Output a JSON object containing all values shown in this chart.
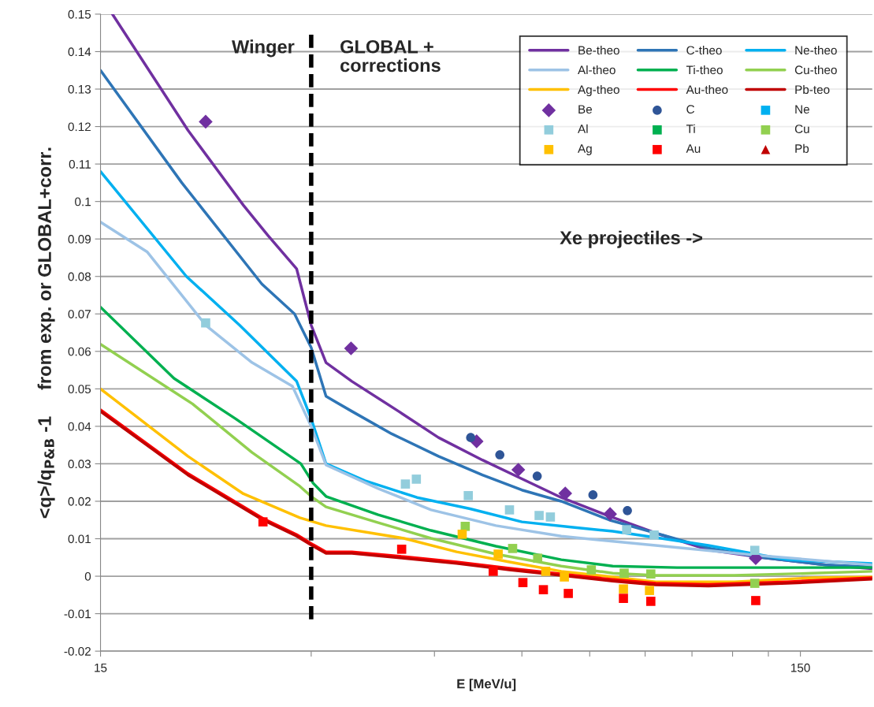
{
  "chart_data": {
    "type": "line",
    "xlabel": "E [MeV/u]",
    "ylabel": "<q>/q$_{P&B}$ -1     from exp. or GLOBAL+corr.",
    "annotations": [
      "Winger",
      "GLOBAL +\ncorrections",
      "Xe projectiles ->"
    ],
    "log": "x",
    "xlim": [
      15,
      190
    ],
    "xticks": [
      15,
      {
        "value": 30,
        "label": null
      },
      {
        "value": 45,
        "label": null
      },
      {
        "value": 60,
        "label": null
      },
      {
        "value": 75,
        "label": null
      },
      {
        "value": 90,
        "label": null
      },
      {
        "value": 105,
        "label": null
      },
      {
        "value": 120,
        "label": null
      },
      {
        "value": 135,
        "label": null
      },
      150
    ],
    "ylim": [
      -0.02,
      0.15
    ],
    "yticks": [
      -0.02,
      -0.01,
      0,
      0.01,
      0.02,
      0.03,
      0.04,
      0.05,
      0.06,
      0.07,
      0.08,
      0.09,
      0.1,
      0.11,
      0.12,
      0.13,
      0.14,
      0.15
    ],
    "grid": "y",
    "legend": "top right",
    "ref_lines": [
      {
        "axis": "x",
        "value": 30,
        "color": "#000000",
        "line_style": "dashed"
      }
    ],
    "series": [
      {
        "name": "Be-theo",
        "color": "#7030a0",
        "x": [
          15.6,
          20,
          24,
          26,
          28.6,
          30,
          31.5,
          34.3,
          40,
          45.6,
          52.7,
          60,
          68.3,
          80,
          95,
          111,
          132,
          163,
          190
        ],
        "values": [
          0.15,
          0.119,
          0.099,
          0.091,
          0.082,
          0.067,
          0.057,
          0.052,
          0.044,
          0.037,
          0.031,
          0.026,
          0.021,
          0.016,
          0.011,
          0.007,
          0.005,
          0.003,
          0.002
        ]
      },
      {
        "name": "C-theo",
        "color": "#2e75b6",
        "x": [
          15,
          19.6,
          25.5,
          28.4,
          30,
          31.5,
          34.3,
          39.1,
          45.6,
          52.7,
          60,
          68.3,
          80,
          111,
          132,
          163,
          190
        ],
        "values": [
          0.135,
          0.105,
          0.078,
          0.07,
          0.061,
          0.048,
          0.044,
          0.038,
          0.032,
          0.027,
          0.023,
          0.02,
          0.015,
          0.0075,
          0.005,
          0.003,
          0.0025
        ]
      },
      {
        "name": "Ne-theo",
        "color": "#00b0f0",
        "x": [
          15,
          19.9,
          23.7,
          28.6,
          30,
          31.5,
          35.8,
          42.5,
          50.6,
          60,
          71.4,
          80.9,
          93.2,
          110.8,
          143.6,
          190
        ],
        "values": [
          0.108,
          0.08,
          0.067,
          0.052,
          0.042,
          0.03,
          0.0255,
          0.021,
          0.018,
          0.0145,
          0.013,
          0.012,
          0.0103,
          0.0082,
          0.0044,
          0.0034
        ]
      },
      {
        "name": "Al-theo",
        "color": "#9dc3e6",
        "x": [
          15,
          17.5,
          21.2,
          24.7,
          28.2,
          30,
          31.5,
          37.4,
          44.5,
          55.1,
          68.3,
          80.9,
          93.2,
          131.8,
          190
        ],
        "values": [
          0.0945,
          0.0865,
          0.067,
          0.057,
          0.0507,
          0.04,
          0.0297,
          0.0234,
          0.0177,
          0.0135,
          0.0107,
          0.0093,
          0.0082,
          0.0055,
          0.003
        ]
      },
      {
        "name": "Ti-theo",
        "color": "#00b050",
        "x": [
          15,
          19.1,
          23.4,
          27,
          29,
          30.2,
          31.5,
          37.4,
          44.5,
          55.1,
          68.3,
          80.9,
          100,
          190
        ],
        "values": [
          0.0718,
          0.0528,
          0.042,
          0.034,
          0.03,
          0.0248,
          0.0213,
          0.0164,
          0.0122,
          0.008,
          0.0044,
          0.0027,
          0.0023,
          0.0023
        ]
      },
      {
        "name": "Cu-theo",
        "color": "#92d050",
        "x": [
          15,
          20.3,
          24.7,
          28.9,
          30,
          31.5,
          37.4,
          44.5,
          55.1,
          68.3,
          80.9,
          93.2,
          120.7,
          156,
          190
        ],
        "values": [
          0.0619,
          0.046,
          0.033,
          0.024,
          0.0213,
          0.0185,
          0.0143,
          0.0101,
          0.0059,
          0.0027,
          0.0008,
          0.0002,
          0.0002,
          0.0008,
          0.0013
        ]
      },
      {
        "name": "Ag-theo",
        "color": "#ffc000",
        "x": [
          15,
          20,
          24,
          28.9,
          31.5,
          40.7,
          48.4,
          57.6,
          68.3,
          80.9,
          93.2,
          120.7,
          156,
          190
        ],
        "values": [
          0.05,
          0.032,
          0.022,
          0.0156,
          0.0135,
          0.0101,
          0.0065,
          0.0038,
          0.0013,
          -0.0002,
          -0.0015,
          -0.0015,
          -0.0004,
          -0.0002
        ]
      },
      {
        "name": "Au-theo",
        "color": "#ff0000",
        "x": [
          15,
          20,
          25.6,
          28.6,
          30.2,
          31.5,
          34.3,
          40.7,
          48.4,
          57.6,
          68.3,
          80.9,
          93.2,
          110.8,
          143.6,
          190
        ],
        "values": [
          0.0444,
          0.0274,
          0.0154,
          0.0111,
          0.0084,
          0.0065,
          0.0065,
          0.0052,
          0.0038,
          0.0021,
          0.0006,
          -0.0009,
          -0.0019,
          -0.0022,
          -0.0015,
          -0.0004
        ]
      },
      {
        "name": "Pb-teo",
        "color": "#c00000",
        "x": [
          15,
          20,
          25.6,
          28.6,
          30.2,
          31.5,
          34.3,
          40.7,
          48.4,
          57.6,
          68.3,
          80.9,
          93.2,
          110.8,
          143.6,
          190
        ],
        "values": [
          0.044,
          0.027,
          0.015,
          0.0107,
          0.008,
          0.0061,
          0.0061,
          0.0048,
          0.0034,
          0.0017,
          0.0002,
          -0.0013,
          -0.0023,
          -0.0026,
          -0.0019,
          -0.0008
        ]
      },
      {
        "name": "Be",
        "type": "scatter",
        "marker": "diamond",
        "color": "#7030a0",
        "x": [
          21.2,
          34.2,
          51.7,
          59.3,
          69.2,
          80.2,
          129.5
        ],
        "values": [
          0.1213,
          0.0608,
          0.036,
          0.0284,
          0.0221,
          0.0166,
          0.0048
        ]
      },
      {
        "name": "C",
        "type": "scatter",
        "marker": "circle",
        "color": "#2f5597",
        "x": [
          50.7,
          55.8,
          63.1,
          75.8,
          84.9
        ],
        "values": [
          0.037,
          0.0324,
          0.0267,
          0.0217,
          0.0175
        ]
      },
      {
        "name": "Ne",
        "type": "scatter",
        "marker": "square",
        "color": "#00b0f0"
      },
      {
        "name": "Al",
        "type": "scatter",
        "marker": "square",
        "color": "#92cddc",
        "x": [
          21.2,
          40.9,
          42.4,
          50.3,
          57.6,
          63.5,
          65.9,
          84.7,
          92.7,
          129.1
        ],
        "values": [
          0.0676,
          0.0246,
          0.0259,
          0.0215,
          0.0177,
          0.0162,
          0.0158,
          0.0124,
          0.011,
          0.0069
        ]
      },
      {
        "name": "Ti",
        "type": "scatter",
        "marker": "square",
        "color": "#00b050"
      },
      {
        "name": "Cu",
        "type": "scatter",
        "marker": "square",
        "color": "#92d050",
        "x": [
          49.8,
          58.2,
          63.2,
          75.4,
          84.0,
          91.7,
          129.1
        ],
        "values": [
          0.0133,
          0.0074,
          0.0048,
          0.0017,
          0.0008,
          0.0006,
          -0.0019
        ]
      },
      {
        "name": "Ag",
        "type": "scatter",
        "marker": "square",
        "color": "#ffc000",
        "x": [
          49.3,
          55.5,
          64.9,
          69.0,
          83.8,
          91.3
        ],
        "values": [
          0.0112,
          0.0059,
          0.0013,
          -0.0002,
          -0.0034,
          -0.0038
        ]
      },
      {
        "name": "Au",
        "type": "scatter",
        "marker": "square",
        "color": "#ff0000",
        "x": [
          25.6,
          40.4,
          54.6,
          60.2,
          64.4,
          69.9,
          83.8,
          91.7,
          129.5
        ],
        "values": [
          0.0145,
          0.0072,
          0.0013,
          -0.0017,
          -0.0036,
          -0.0046,
          -0.0059,
          -0.0067,
          -0.0065
        ]
      },
      {
        "name": "Pb",
        "type": "scatter",
        "marker": "triangle",
        "color": "#c00000"
      }
    ]
  }
}
